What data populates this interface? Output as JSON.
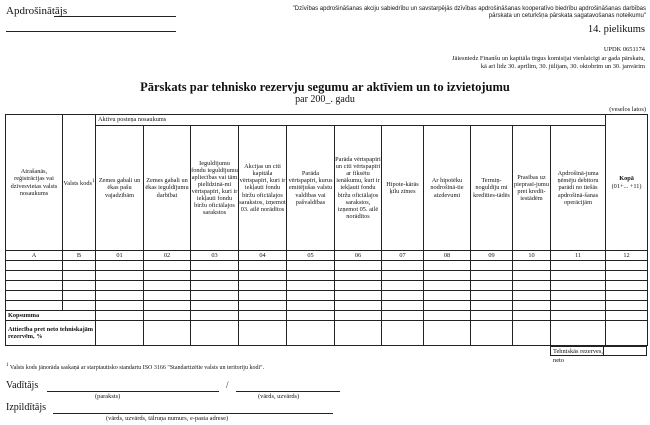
{
  "header": {
    "insurer_label": "Apdrošinātājs",
    "regulation": "\"Dzīvības apdrošināšanas akciju sabiedrību un savstarpējās dzīvības apdrošināšanas kooperatīvo biedrību apdrošināšanas darbības pārskata un ceturkšņa pārskata sagatavošanas noteikumu\"",
    "annex": "14. pielikums",
    "code": "UPDK 0651174",
    "submit_line1": "Jāiesniedz Finanšu un kapitāla tirgus komisijai vienlaicīgi ar gada pārskatu,",
    "submit_line2": "kā arī līdz 30. aprīlim, 30. jūlijam, 30. oktobrim un 30. janvārim"
  },
  "title": "Pārskats par tehnisko rezervju segumu ar aktīviem un to izvietojumu",
  "subtitle": "par 200_. gadu",
  "units": "(veselos latos)",
  "table": {
    "group_header": "Aktīvu posteņa nosaukums",
    "col_a": "Atrašanās, reģistrācijas vai dzīvesvietas valsts nosaukums",
    "col_b": "Valsts kods",
    "col_b_sup": "1",
    "columns": [
      "Zemes gabali un ēkas pašu vajadzībām",
      "Zemes gabali un ēkas ieguldījumu darbībai",
      "Ieguldījumu fondu ieguldījumu apliecības vai tām pielīdzinā-mi vērtspapīri, kuri ir iekļauti fondu biržu oficiālajos sarakstos",
      "Akcijas un citi kapitāla vērtspapīri, kuri ir iekļauti fondu biržu oficiālajos sarakstos, izņemot 03. ailē norādītos",
      "Parāda vērtspapīri, kurus emitējušas valstu valdības vai pašvaldības",
      "Parāda vērtspapīri un citi vērtspapīri ar fiksētu ienākumu, kuri ir iekļauti fondu biržu oficiālajos sarakstos, izņemot 05. ailē norādītos",
      "Hipote-kārās ķīlu zīmes",
      "Ar hipotēku nodrošinā-tie aizdevumi",
      "Termiņ-noguldīju mi kredīties-tādēs",
      "Prasības uz pieprasī-jumu pret kredīt-iestādēm",
      "Apdrošinā-juma ņēmēju debitoru parādi no tiešās apdrošinā-šanas operācijām"
    ],
    "total_col": "Kopā",
    "total_col_formula": "(01+... +11)",
    "codes": [
      "A",
      "B",
      "01",
      "02",
      "03",
      "04",
      "05",
      "06",
      "07",
      "08",
      "09",
      "10",
      "11",
      "12"
    ],
    "total_row": "Kopsumma",
    "ratio_row": "Attiecība pret neto tehniskajām rezervēm, %",
    "net_reserves": "Tehniskās rezerves, neto"
  },
  "footnote_mark": "1",
  "footnote": "Valsts kods jānorāda saskaņā ar starptautisko standartu ISO 3166 \"Standartizētie valsts un teritoriju kodi\".",
  "signatures": {
    "manager_label": "Vadītājs",
    "separator": "/",
    "signature_caption": "(paraksts)",
    "name_caption": "(vārds, uzvārds)",
    "executor_label": "Izpildītājs",
    "executor_caption": "(vārds, uzvārds, tālruņa numurs, e-pasta adrese)"
  }
}
